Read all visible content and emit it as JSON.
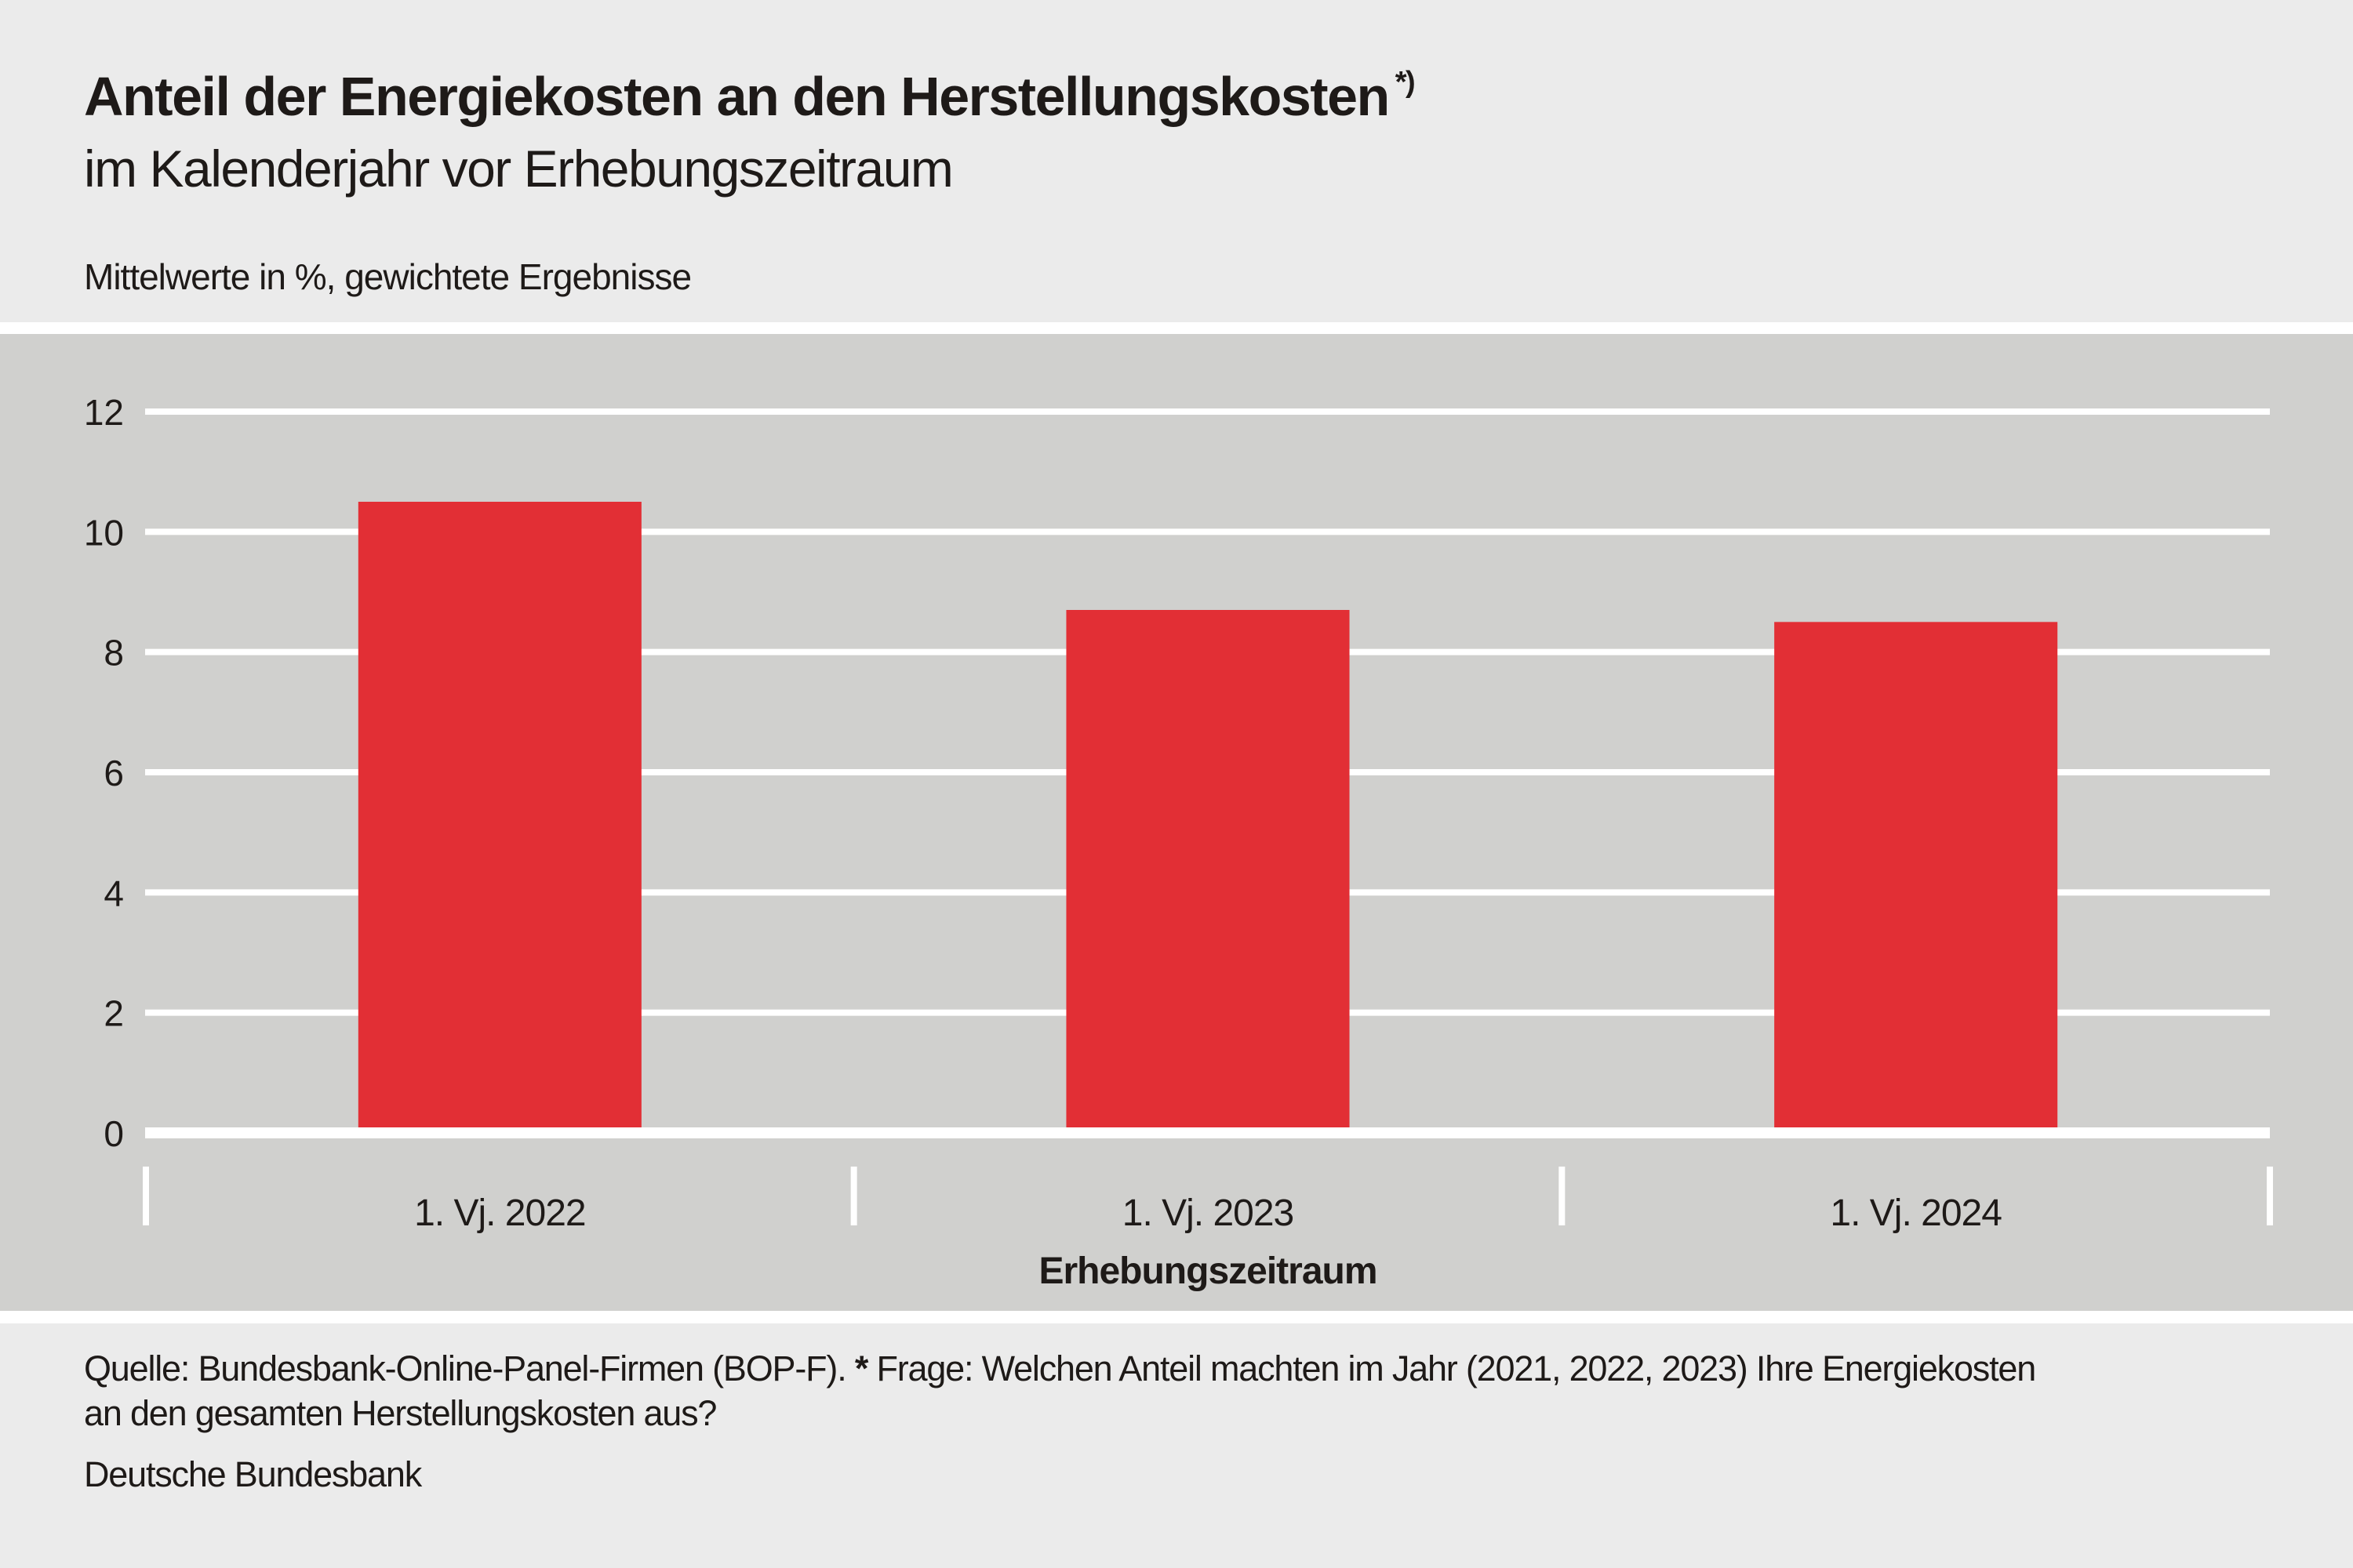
{
  "colors": {
    "page_background": "#ebebeb",
    "plot_background": "#d0d0ce",
    "bar": "#e22f35",
    "gridline": "#ffffff",
    "text": "#1e1a18"
  },
  "header": {
    "title": "Anteil der Energiekosten an den Herstellungskosten",
    "title_footnote_marker": "*)",
    "subtitle": "im Kalenderjahr vor Erhebungszeitraum",
    "unit_note": "Mittelwerte in %, gewichtete Ergebnisse"
  },
  "chart_data": {
    "type": "bar",
    "title": "Anteil der Energiekosten an den Herstellungskosten",
    "subtitle": "im Kalenderjahr vor Erhebungszeitraum",
    "categories": [
      "1. Vj. 2022",
      "1. Vj. 2023",
      "1. Vj. 2024"
    ],
    "values": [
      10.5,
      8.7,
      8.5
    ],
    "xlabel": "Erhebungszeitraum",
    "ylabel": "Mittelwerte in %, gewichtete Ergebnisse",
    "ylim": [
      0,
      12
    ],
    "yticks": [
      0,
      2,
      4,
      6,
      8,
      10,
      12
    ],
    "ytick_labels": [
      "0",
      "2",
      "4",
      "6",
      "8",
      "10",
      "12"
    ],
    "grid": true,
    "legend": "none"
  },
  "footer": {
    "source_prefix": "Quelle: Bundesbank-Online-Panel-Firmen (BOP-F).",
    "asterisk": "*",
    "question_line1": "Frage: Welchen Anteil machten im Jahr (2021, 2022, 2023) Ihre Energiekosten",
    "question_line2": "an den gesamten Herstellungskosten aus?",
    "publisher": "Deutsche Bundesbank"
  }
}
